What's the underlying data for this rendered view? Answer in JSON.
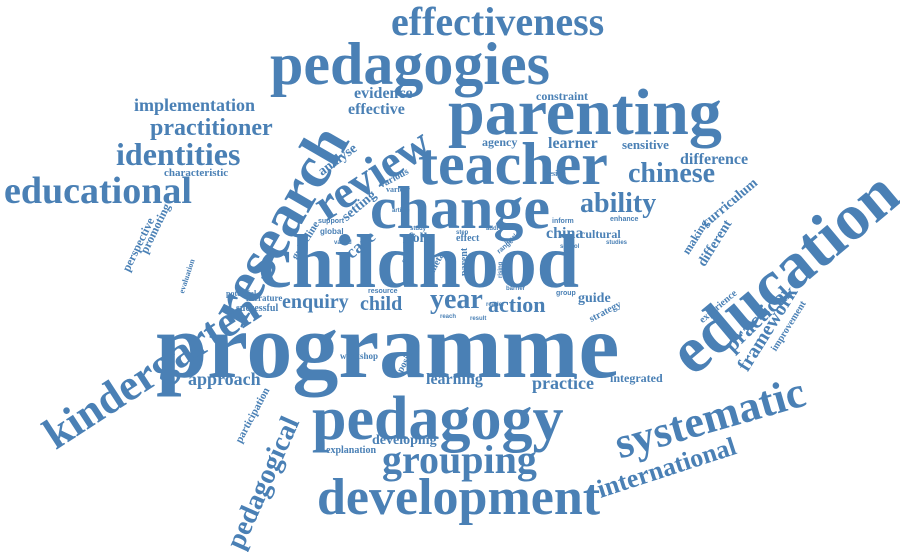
{
  "colors": {
    "word": "#4a80b5",
    "background": "#ffffff"
  },
  "words": [
    "effectiveness",
    "pedagogies",
    "parenting",
    "teacher",
    "review",
    "research",
    "change",
    "childhood",
    "programme",
    "education",
    "pedagogy",
    "development",
    "grouping",
    "systematic",
    "international",
    "kindergarten",
    "educational",
    "identities",
    "practitioner",
    "implementation",
    "evidence",
    "effective",
    "constraint",
    "analyse",
    "learner",
    "sensitive",
    "chinese",
    "difference",
    "ability",
    "characteristic",
    "setting",
    "various",
    "variety",
    "design",
    "curriculum",
    "china",
    "cultural",
    "making",
    "different",
    "framework",
    "practical",
    "improvement",
    "experience",
    "guide",
    "strategy",
    "year",
    "action",
    "enquiry",
    "child",
    "successful",
    "literature",
    "potential",
    "learning",
    "practice",
    "integrated",
    "approach",
    "participation",
    "pedagogical",
    "explanation",
    "developing",
    "workshop",
    "positive",
    "care",
    "guideline",
    "perspective",
    "promoting",
    "evaluation",
    "support",
    "global",
    "folk",
    "effect",
    "parent",
    "inform",
    "enhance",
    "agency",
    "group",
    "barrier",
    "resource",
    "reader",
    "school",
    "studies",
    "meta",
    "step",
    "range",
    "local",
    "addr",
    "rising",
    "varied",
    "article",
    "make",
    "study",
    "find",
    "reach",
    "result"
  ]
}
